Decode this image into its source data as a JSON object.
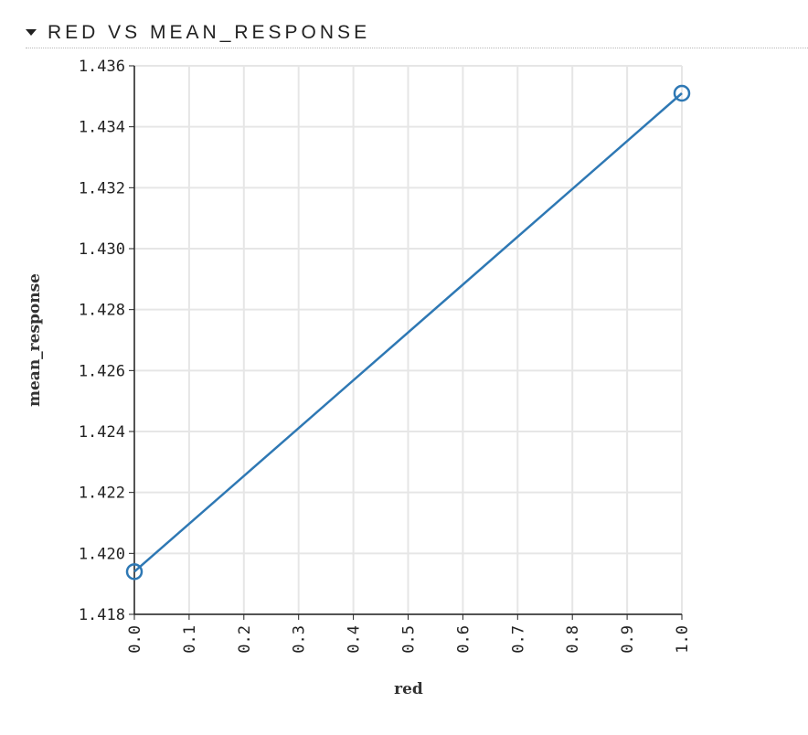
{
  "header": {
    "title": "RED VS MEAN_RESPONSE"
  },
  "icons": {
    "toggle": "caret-down-icon"
  },
  "colors": {
    "series": "#2e78b4",
    "grid": "#e6e6e6",
    "axis": "#222222"
  },
  "chart_data": {
    "type": "line",
    "xlabel": "red",
    "ylabel": "mean_response",
    "xlim": [
      0.0,
      1.0
    ],
    "ylim": [
      1.418,
      1.436
    ],
    "xticks": [
      "0.0",
      "0.1",
      "0.2",
      "0.3",
      "0.4",
      "0.5",
      "0.6",
      "0.7",
      "0.8",
      "0.9",
      "1.0"
    ],
    "yticks": [
      "1.418",
      "1.420",
      "1.422",
      "1.424",
      "1.426",
      "1.428",
      "1.430",
      "1.432",
      "1.434",
      "1.436"
    ],
    "grid": true,
    "series": [
      {
        "x": [
          0.0,
          1.0
        ],
        "y": [
          1.4194,
          1.4351
        ],
        "markers": "open-circle"
      }
    ]
  }
}
